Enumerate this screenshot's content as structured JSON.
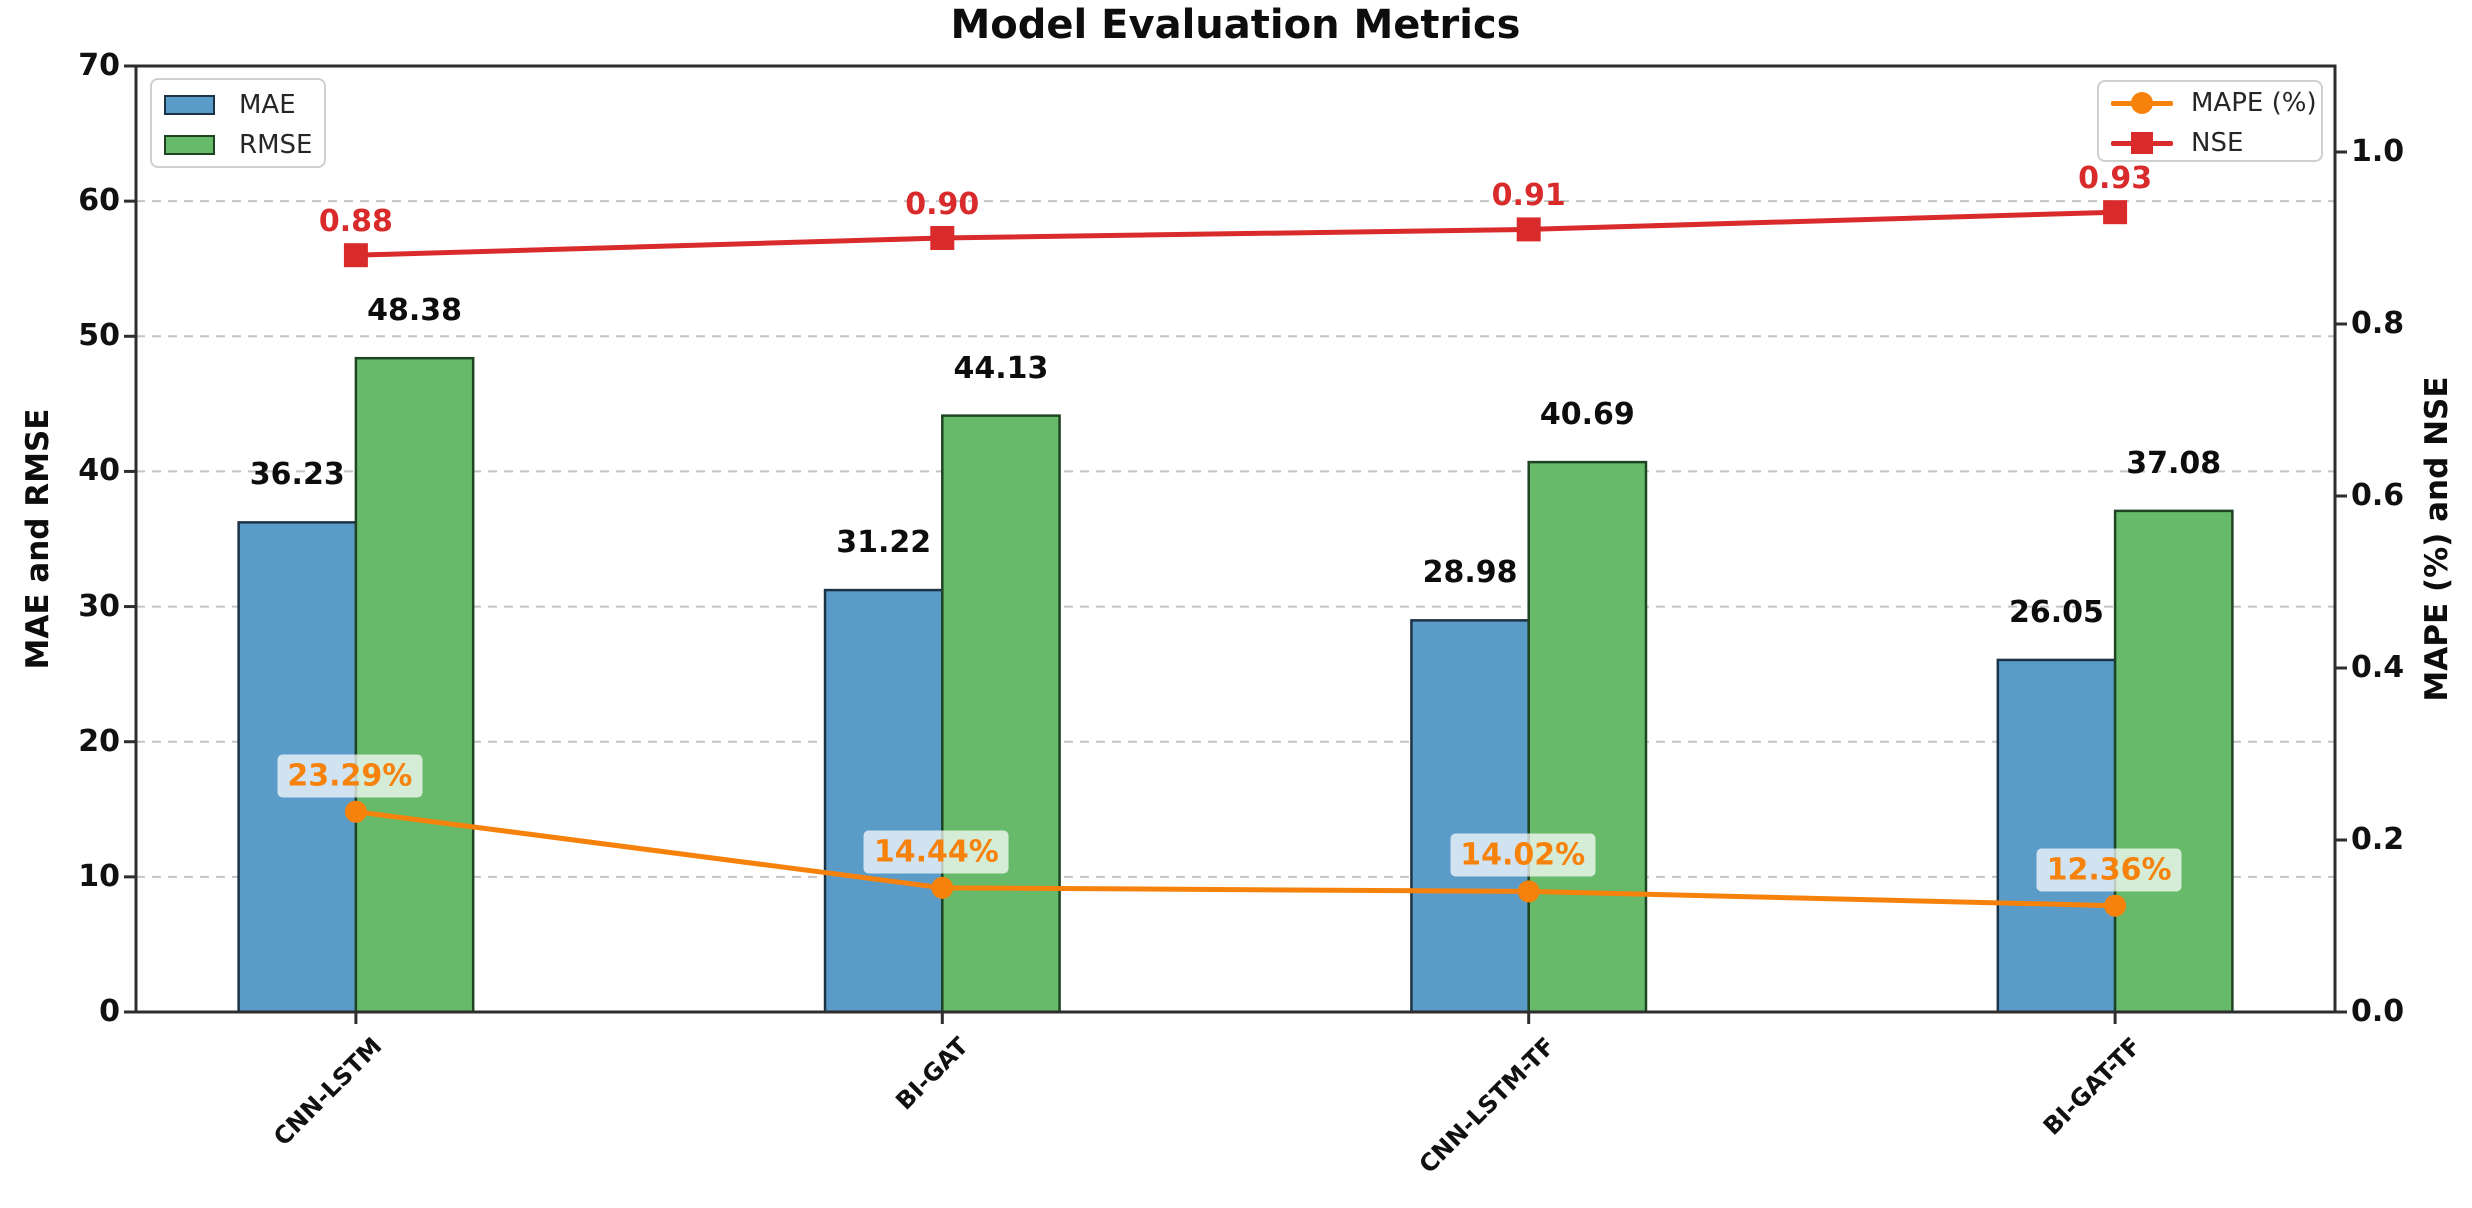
{
  "title": "Model Evaluation Metrics",
  "chart_data": {
    "type": "combo-bar-line",
    "categories": [
      "CNN-LSTM",
      "BI-GAT",
      "CNN-LSTM-TF",
      "BI-GAT-TF"
    ],
    "bar_series": [
      {
        "name": "MAE",
        "color": "#5b9bc8",
        "edge": "#1c3347",
        "values": [
          36.23,
          31.22,
          28.98,
          26.05
        ],
        "value_labels": [
          "36.23",
          "31.22",
          "28.98",
          "26.05"
        ]
      },
      {
        "name": "RMSE",
        "color": "#68ba6b",
        "edge": "#1e4423",
        "values": [
          48.38,
          44.13,
          40.69,
          37.08
        ],
        "value_labels": [
          "48.38",
          "44.13",
          "40.69",
          "37.08"
        ]
      }
    ],
    "line_series": [
      {
        "name": "MAPE (%)",
        "color": "#f6820c",
        "marker": "circle",
        "values": [
          0.2329,
          0.1444,
          0.1402,
          0.1236
        ],
        "point_labels": [
          "23.29%",
          "14.44%",
          "14.02%",
          "12.36%"
        ],
        "label_style": "boxed",
        "label_bg": "rgba(255,255,255,0.72)"
      },
      {
        "name": "NSE",
        "color": "#d92b2b",
        "marker": "square",
        "values": [
          0.88,
          0.9,
          0.91,
          0.93
        ],
        "point_labels": [
          "0.88",
          "0.90",
          "0.91",
          "0.93"
        ],
        "label_style": "plain",
        "label_bg": ""
      }
    ],
    "left_axis": {
      "label": "MAE and RMSE",
      "ticks": [
        "0",
        "10",
        "20",
        "30",
        "40",
        "50",
        "60",
        "70"
      ],
      "lim": [
        0,
        70
      ]
    },
    "right_axis": {
      "label": "MAPE (%) and NSE",
      "ticks": [
        "0.0",
        "0.2",
        "0.4",
        "0.6",
        "0.8",
        "1.0"
      ],
      "lim": [
        0,
        1.1
      ]
    },
    "grid": {
      "style": "dashed",
      "color": "#c4c4c4"
    },
    "legend_positions": {
      "bars": "upper left",
      "lines": "upper right"
    }
  }
}
